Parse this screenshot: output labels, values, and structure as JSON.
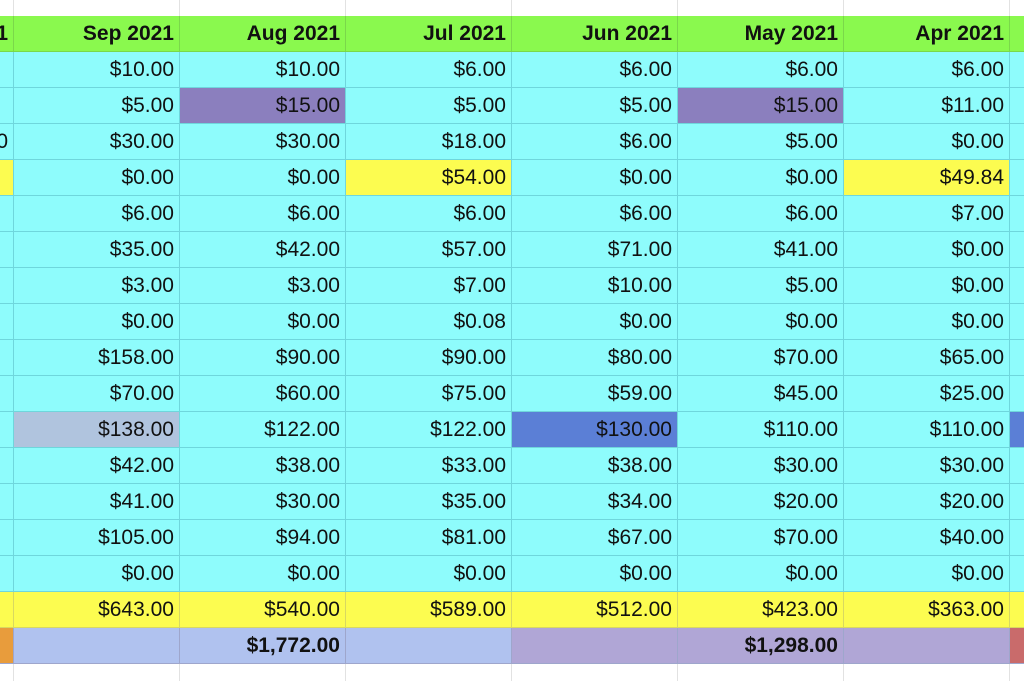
{
  "sheet": {
    "left_partial": {
      "header": "1",
      "cells": [
        "",
        "",
        "0",
        "",
        "",
        "",
        "",
        "",
        "",
        "",
        "",
        "",
        "",
        "",
        ""
      ],
      "cell_colors": {
        "3": "#fcfc50"
      },
      "total": "",
      "summary": "",
      "summary_color": "#e89c3c"
    },
    "columns": [
      {
        "header": "Sep 2021",
        "cells": [
          "$10.00",
          "$5.00",
          "$30.00",
          "$0.00",
          "$6.00",
          "$35.00",
          "$3.00",
          "$0.00",
          "$158.00",
          "$70.00",
          "$138.00",
          "$42.00",
          "$41.00",
          "$105.00",
          "$0.00"
        ],
        "cell_colors": {
          "10": "#b0c4de"
        },
        "total": "$643.00",
        "summary": "",
        "summary_color": "#b0c2ef"
      },
      {
        "header": "Aug 2021",
        "cells": [
          "$10.00",
          "$15.00",
          "$30.00",
          "$0.00",
          "$6.00",
          "$42.00",
          "$3.00",
          "$0.00",
          "$90.00",
          "$60.00",
          "$122.00",
          "$38.00",
          "$30.00",
          "$94.00",
          "$0.00"
        ],
        "cell_colors": {
          "1": "#8b7fbe"
        },
        "total": "$540.00",
        "summary": "$1,772.00",
        "summary_color": "#b0c2ef"
      },
      {
        "header": "Jul 2021",
        "cells": [
          "$6.00",
          "$5.00",
          "$18.00",
          "$54.00",
          "$6.00",
          "$57.00",
          "$7.00",
          "$0.08",
          "$90.00",
          "$75.00",
          "$122.00",
          "$33.00",
          "$35.00",
          "$81.00",
          "$0.00"
        ],
        "cell_colors": {
          "3": "#fcfc50"
        },
        "total": "$589.00",
        "summary": "",
        "summary_color": "#b0c2ef"
      },
      {
        "header": "Jun 2021",
        "cells": [
          "$6.00",
          "$5.00",
          "$6.00",
          "$0.00",
          "$6.00",
          "$71.00",
          "$10.00",
          "$0.00",
          "$80.00",
          "$59.00",
          "$130.00",
          "$38.00",
          "$34.00",
          "$67.00",
          "$0.00"
        ],
        "cell_colors": {
          "10": "#5b7fd6"
        },
        "total": "$512.00",
        "summary": "",
        "summary_color": "#b0a6d6"
      },
      {
        "header": "May 2021",
        "cells": [
          "$6.00",
          "$15.00",
          "$5.00",
          "$0.00",
          "$6.00",
          "$41.00",
          "$5.00",
          "$0.00",
          "$70.00",
          "$45.00",
          "$110.00",
          "$30.00",
          "$20.00",
          "$70.00",
          "$0.00"
        ],
        "cell_colors": {
          "1": "#8b7fbe"
        },
        "total": "$423.00",
        "summary": "$1,298.00",
        "summary_color": "#b0a6d6"
      },
      {
        "header": "Apr 2021",
        "cells": [
          "$6.00",
          "$11.00",
          "$0.00",
          "$49.84",
          "$7.00",
          "$0.00",
          "$0.00",
          "$0.00",
          "$65.00",
          "$25.00",
          "$110.00",
          "$30.00",
          "$20.00",
          "$40.00",
          "$0.00"
        ],
        "cell_colors": {
          "3": "#fcfc50"
        },
        "total": "$363.00",
        "summary": "",
        "summary_color": "#b0a6d6"
      }
    ],
    "right_partial": {
      "cell_colors": {
        "10": "#5b7fd6"
      },
      "summary_color": "#c96b6b"
    }
  }
}
